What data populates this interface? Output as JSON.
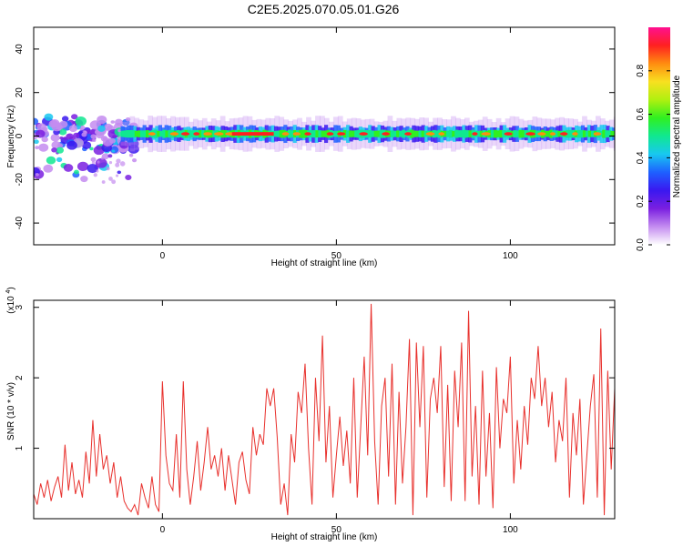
{
  "title": "C2E5.2025.070.05.01.G26",
  "colors": {
    "snr_line": "#e8302c",
    "spectrogram_ridge": "#e8302c",
    "background": "#ffffff"
  },
  "chart_data": [
    {
      "type": "heatmap",
      "name": "spectrogram",
      "xlabel": "Height of straight line (km)",
      "ylabel": "Frequency (Hz)",
      "xlim": [
        -37,
        130
      ],
      "ylim": [
        -50,
        50
      ],
      "xticks": [
        0,
        50,
        100
      ],
      "yticks": [
        -40,
        -20,
        0,
        20,
        40
      ],
      "grid": false,
      "ridge": {
        "x_range": [
          -37,
          130
        ],
        "center_frequency_hz": 1,
        "band_width_hz": 6,
        "note_min_x_stable": -12
      },
      "scatter_region": {
        "x_range": [
          -37,
          -8
        ],
        "frequency_range_hz": [
          -20,
          10
        ]
      },
      "colorbar": {
        "label": "Normalized spectral amplitude",
        "range": [
          0.0,
          1.0
        ],
        "ticks": [
          0.0,
          0.2,
          0.4,
          0.6,
          0.8
        ],
        "tick_labels": [
          "0.0",
          "0.2",
          "0.4",
          "0.6",
          "0.8"
        ],
        "colormap": [
          "#ffffff",
          "#c48cf0",
          "#7a1fe0",
          "#3a18f0",
          "#1e60ff",
          "#18c8f0",
          "#10e890",
          "#30f020",
          "#b0f010",
          "#f8e020",
          "#ff8c10",
          "#ff2020",
          "#ff1090"
        ]
      }
    },
    {
      "type": "line",
      "name": "snr",
      "xlabel": "Height of straight line (km)",
      "ylabel": "SNR (10 * v/v)",
      "y_multiplier": "x10^4",
      "xlim": [
        -37,
        130
      ],
      "ylim": [
        0,
        3.1
      ],
      "xticks": [
        0,
        50,
        100
      ],
      "yticks": [
        1,
        2,
        3
      ],
      "grid": false,
      "x": [
        -37,
        -36,
        -35,
        -34,
        -33,
        -32,
        -31,
        -30,
        -29,
        -28,
        -27,
        -26,
        -25,
        -24,
        -23,
        -22,
        -21,
        -20,
        -19,
        -18,
        -17,
        -16,
        -15,
        -14,
        -13,
        -12,
        -11,
        -10,
        -9,
        -8,
        -7,
        -6,
        -5,
        -4,
        -3,
        -2,
        -1,
        0,
        1,
        2,
        3,
        4,
        5,
        6,
        7,
        8,
        9,
        10,
        11,
        12,
        13,
        14,
        15,
        16,
        17,
        18,
        19,
        20,
        21,
        22,
        23,
        24,
        25,
        26,
        27,
        28,
        29,
        30,
        31,
        32,
        33,
        34,
        35,
        36,
        37,
        38,
        39,
        40,
        41,
        42,
        43,
        44,
        45,
        46,
        47,
        48,
        49,
        50,
        51,
        52,
        53,
        54,
        55,
        56,
        57,
        58,
        59,
        60,
        61,
        62,
        63,
        64,
        65,
        66,
        67,
        68,
        69,
        70,
        71,
        72,
        73,
        74,
        75,
        76,
        77,
        78,
        79,
        80,
        81,
        82,
        83,
        84,
        85,
        86,
        87,
        88,
        89,
        90,
        91,
        92,
        93,
        94,
        95,
        96,
        97,
        98,
        99,
        100,
        101,
        102,
        103,
        104,
        105,
        106,
        107,
        108,
        109,
        110,
        111,
        112,
        113,
        114,
        115,
        116,
        117,
        118,
        119,
        120,
        121,
        122,
        123,
        124,
        125,
        126,
        127,
        128,
        129,
        130
      ],
      "values": [
        0.35,
        0.2,
        0.5,
        0.3,
        0.55,
        0.25,
        0.45,
        0.6,
        0.3,
        1.05,
        0.4,
        0.8,
        0.35,
        0.55,
        0.3,
        0.95,
        0.5,
        1.4,
        0.6,
        1.2,
        0.7,
        0.9,
        0.5,
        0.8,
        0.3,
        0.6,
        0.25,
        0.15,
        0.1,
        0.2,
        0.05,
        0.5,
        0.3,
        0.15,
        0.6,
        0.2,
        0.1,
        1.95,
        0.9,
        0.5,
        0.4,
        1.2,
        0.3,
        1.95,
        0.7,
        0.2,
        0.6,
        1.1,
        0.4,
        0.8,
        1.3,
        0.7,
        0.9,
        0.6,
        1.0,
        0.4,
        0.9,
        0.55,
        0.2,
        0.8,
        0.95,
        0.55,
        0.35,
        1.3,
        0.9,
        1.2,
        1.05,
        1.85,
        1.6,
        1.85,
        1.15,
        0.2,
        0.5,
        0.05,
        1.2,
        0.8,
        1.8,
        1.5,
        2.2,
        1.0,
        0.2,
        2.0,
        1.1,
        2.6,
        0.8,
        1.6,
        0.3,
        0.9,
        1.45,
        0.75,
        1.25,
        0.5,
        2.0,
        0.3,
        1.3,
        2.3,
        0.9,
        3.05,
        1.1,
        0.2,
        1.6,
        2.0,
        0.6,
        2.2,
        0.2,
        1.8,
        0.5,
        1.3,
        2.55,
        0.05,
        2.5,
        1.3,
        2.45,
        0.3,
        1.7,
        2.0,
        1.5,
        2.45,
        0.45,
        1.9,
        0.25,
        2.1,
        1.3,
        2.5,
        0.25,
        2.95,
        0.6,
        1.6,
        0.2,
        2.1,
        0.6,
        1.5,
        0.15,
        2.15,
        1.0,
        1.7,
        1.5,
        2.3,
        0.5,
        1.4,
        0.7,
        1.6,
        1.05,
        2.0,
        1.7,
        2.45,
        1.6,
        2.0,
        1.3,
        1.8,
        0.8,
        1.4,
        1.1,
        2.0,
        0.3,
        1.5,
        0.9,
        1.7,
        0.2,
        0.9,
        1.6,
        2.05,
        0.3,
        2.7,
        0.05,
        2.1,
        0.7,
        1.85
      ]
    }
  ]
}
